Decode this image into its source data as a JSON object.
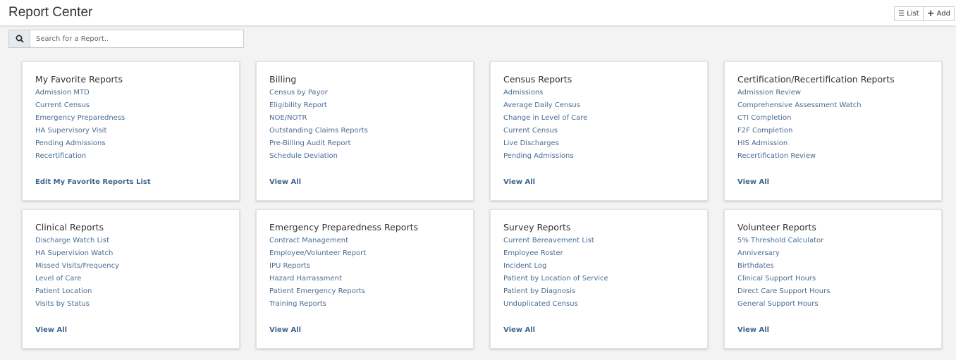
{
  "header": {
    "title": "Report Center",
    "list_label": "List",
    "add_label": "Add"
  },
  "search": {
    "placeholder": "Search for a Report.."
  },
  "cards": [
    {
      "title": "My Favorite Reports",
      "items": [
        "Admission MTD",
        "Current Census",
        "Emergency Preparedness",
        "HA Supervisory Visit",
        "Pending Admissions",
        "Recertification"
      ],
      "footer": "Edit My Favorite Reports List"
    },
    {
      "title": "Billing",
      "items": [
        "Census by Payor",
        "Eligibility Report",
        "NOE/NOTR",
        "Outstanding Claims Reports",
        "Pre-Billing Audit Report",
        "Schedule Deviation"
      ],
      "footer": "View All"
    },
    {
      "title": "Census Reports",
      "items": [
        "Admissions",
        "Average Daily Census",
        "Change in Level of Care",
        "Current Census",
        "Live Discharges",
        "Pending Admissions"
      ],
      "footer": "View All"
    },
    {
      "title": "Certification/Recertification Reports",
      "items": [
        "Admission Review",
        "Comprehensive Assessment Watch",
        "CTI Completion",
        "F2F Completion",
        "HIS Admission",
        "Recertification Review"
      ],
      "footer": "View All"
    },
    {
      "title": "Clinical Reports",
      "items": [
        "Discharge Watch List",
        "HA Supervision Watch",
        "Missed Visits/Frequency",
        "Level of Care",
        "Patient Location",
        "Visits by Status"
      ],
      "footer": "View All"
    },
    {
      "title": "Emergency Preparedness Reports",
      "items": [
        "Contract Management",
        "Employee/Volunteer Report",
        "IPU Reports",
        "Hazard Harrassment",
        "Patient Emergency Reports",
        "Training Reports"
      ],
      "footer": "View All"
    },
    {
      "title": "Survey Reports",
      "items": [
        "Current Bereavement List",
        "Employee Roster",
        "Incident Log",
        "Patient by Location of Service",
        "Patient by Diagnosis",
        "Unduplicated Census"
      ],
      "footer": "View All"
    },
    {
      "title": "Volunteer Reports",
      "items": [
        "5% Threshold Calculator",
        "Anniversary",
        "Birthdates",
        "Clinical Support Hours",
        "Direct Care Support Hours",
        "General Support Hours"
      ],
      "footer": "View All"
    }
  ]
}
